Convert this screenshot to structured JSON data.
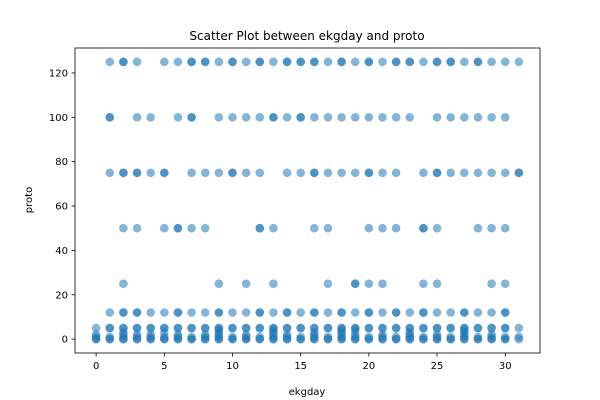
{
  "chart_data": {
    "type": "scatter",
    "title": "Scatter Plot between ekgday and proto",
    "xlabel": "ekgday",
    "ylabel": "proto",
    "xlim": [
      -1.55,
      32.55
    ],
    "ylim": [
      -6.25,
      131.25
    ],
    "xticks": [
      0,
      5,
      10,
      15,
      20,
      25,
      30
    ],
    "yticks": [
      0,
      20,
      40,
      60,
      80,
      100,
      120
    ],
    "grid": false,
    "legend": "none",
    "marker_color": "#1f77b4",
    "marker_alpha": 0.55,
    "rows": [
      {
        "y": 125,
        "x": [
          1,
          2,
          2,
          3,
          5,
          6,
          7,
          7,
          8,
          8,
          9,
          10,
          10,
          11,
          12,
          12,
          13,
          14,
          14,
          15,
          15,
          16,
          16,
          17,
          18,
          18,
          19,
          20,
          20,
          21,
          22,
          22,
          23,
          23,
          24,
          25,
          25,
          26,
          26,
          27,
          28,
          28,
          29,
          30,
          31
        ]
      },
      {
        "y": 100,
        "x": [
          1,
          1,
          3,
          4,
          6,
          7,
          7,
          9,
          10,
          11,
          12,
          13,
          13,
          14,
          15,
          15,
          16,
          17,
          18,
          19,
          20,
          21,
          22,
          23,
          25,
          26,
          27,
          28,
          29,
          30
        ]
      },
      {
        "y": 75,
        "x": [
          1,
          2,
          2,
          3,
          3,
          4,
          5,
          5,
          7,
          8,
          9,
          10,
          10,
          11,
          12,
          14,
          15,
          16,
          16,
          17,
          18,
          19,
          20,
          20,
          21,
          22,
          24,
          25,
          25,
          26,
          27,
          28,
          29,
          30,
          31,
          31
        ]
      },
      {
        "y": 50,
        "x": [
          2,
          3,
          5,
          6,
          6,
          7,
          8,
          12,
          12,
          13,
          16,
          17,
          20,
          21,
          22,
          24,
          24,
          25,
          28,
          29,
          30
        ]
      },
      {
        "y": 25,
        "x": [
          2,
          9,
          11,
          13,
          17,
          19,
          19,
          20,
          21,
          24,
          25,
          29,
          30
        ]
      },
      {
        "y": 12,
        "x": [
          1,
          2,
          2,
          3,
          3,
          4,
          5,
          6,
          6,
          7,
          8,
          9,
          9,
          10,
          11,
          12,
          12,
          13,
          14,
          14,
          15,
          16,
          16,
          17,
          18,
          18,
          19,
          20,
          20,
          21,
          22,
          22,
          23,
          24,
          24,
          25,
          26,
          27,
          27,
          28,
          29,
          30,
          30
        ]
      },
      {
        "y": 5,
        "x": [
          0,
          1,
          1,
          2,
          2,
          3,
          3,
          4,
          4,
          5,
          5,
          6,
          6,
          7,
          7,
          8,
          8,
          9,
          9,
          10,
          10,
          11,
          11,
          12,
          12,
          13,
          13,
          14,
          14,
          15,
          15,
          16,
          16,
          17,
          17,
          18,
          18,
          19,
          19,
          20,
          20,
          21,
          21,
          22,
          22,
          23,
          23,
          24,
          24,
          25,
          25,
          26,
          26,
          27,
          27,
          28,
          28,
          29,
          29,
          30,
          30,
          31
        ]
      },
      {
        "y": 4,
        "x": [
          9,
          13,
          18,
          19,
          27
        ]
      },
      {
        "y": 3,
        "x": [
          2,
          5,
          9,
          13,
          16,
          18,
          23,
          27
        ]
      },
      {
        "y": 2,
        "x": [
          0,
          2,
          3,
          4,
          6,
          8,
          9,
          11,
          13,
          14,
          16,
          18,
          19,
          21,
          23,
          25,
          27,
          29
        ]
      },
      {
        "y": 1,
        "x": [
          0,
          1,
          2,
          3,
          4,
          5,
          6,
          7,
          8,
          9,
          10,
          11,
          12,
          13,
          14,
          15,
          16,
          17,
          18,
          19,
          20,
          21,
          22,
          23,
          24,
          25,
          26,
          27,
          28,
          29,
          30,
          31
        ]
      },
      {
        "y": 0,
        "x": [
          0,
          0,
          1,
          1,
          2,
          2,
          3,
          3,
          4,
          4,
          5,
          5,
          6,
          6,
          7,
          7,
          8,
          8,
          9,
          9,
          10,
          10,
          11,
          11,
          12,
          12,
          13,
          13,
          14,
          14,
          15,
          15,
          16,
          16,
          17,
          17,
          18,
          18,
          19,
          19,
          20,
          20,
          21,
          21,
          22,
          22,
          23,
          23,
          24,
          24,
          25,
          25,
          26,
          26,
          27,
          27,
          28,
          28,
          29,
          29,
          30,
          30,
          31
        ]
      }
    ]
  }
}
